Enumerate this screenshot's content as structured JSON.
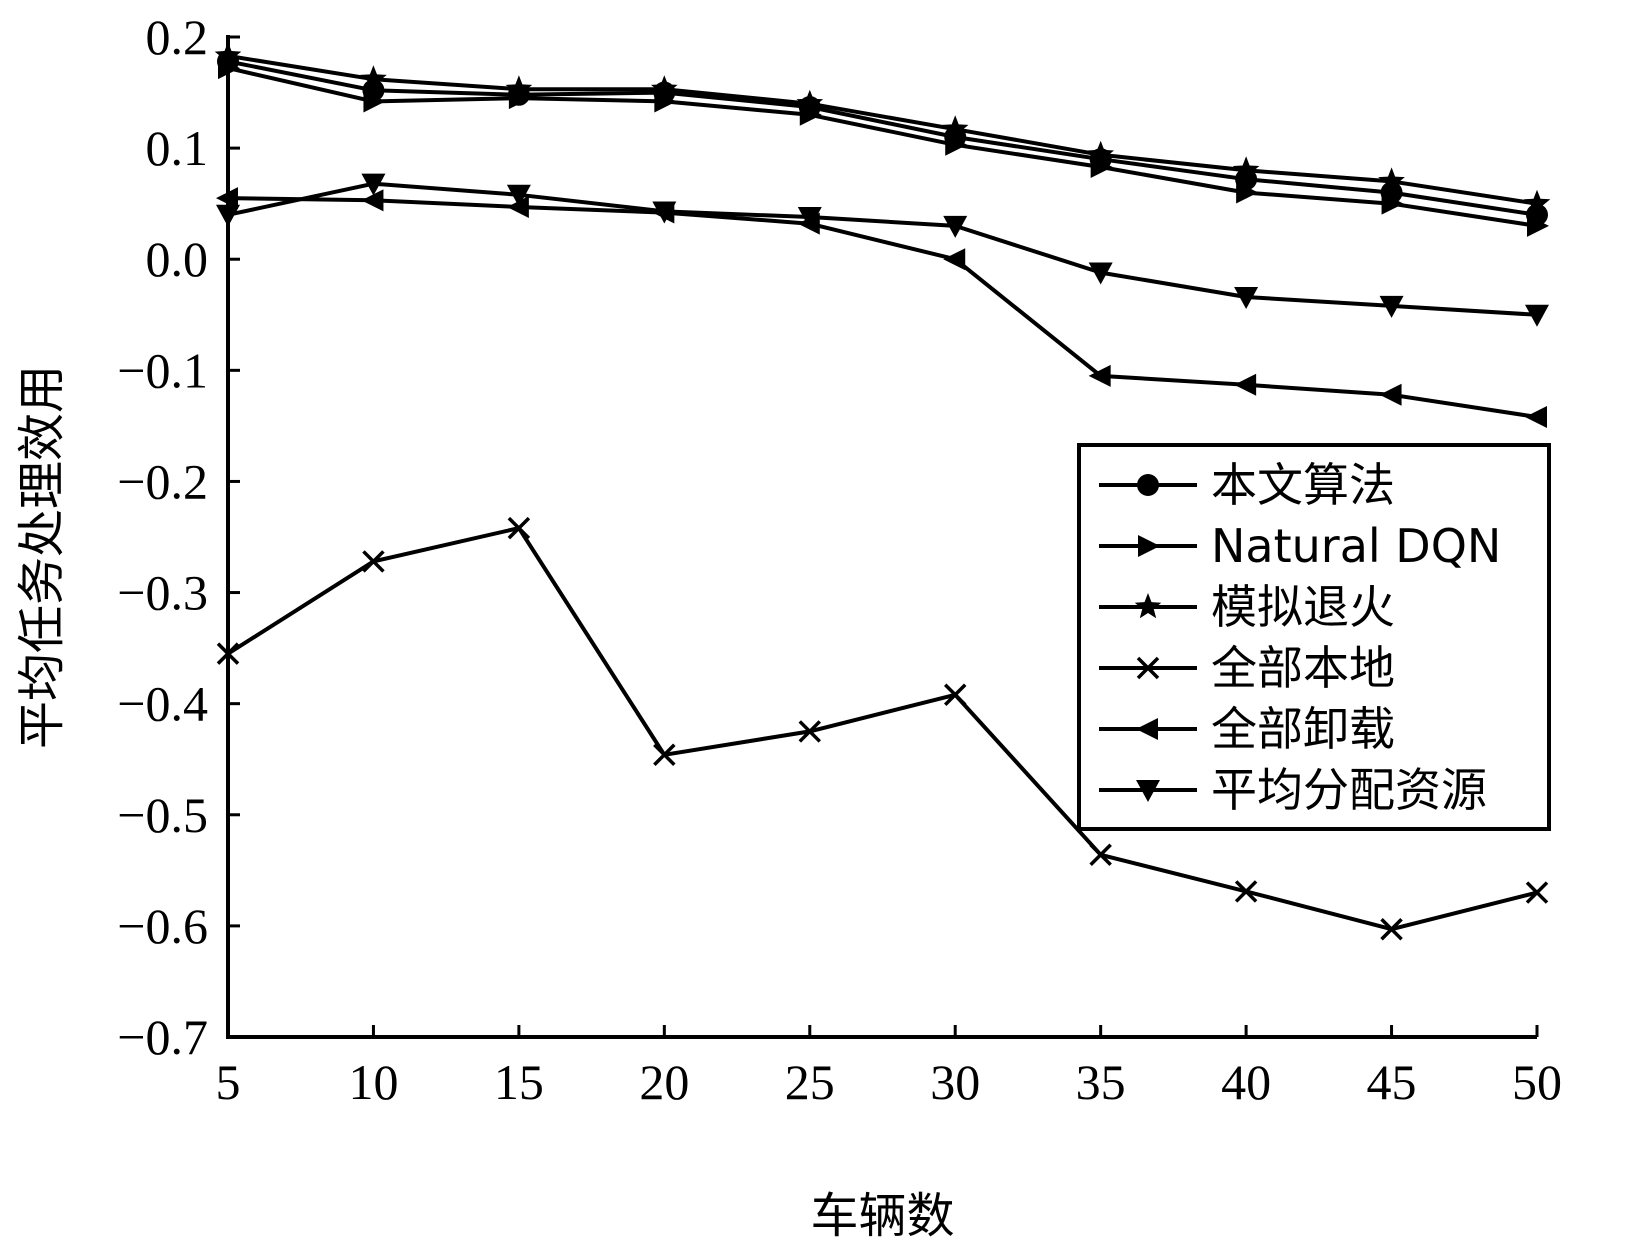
{
  "chart_data": {
    "type": "line",
    "title": "",
    "xlabel": "车辆数",
    "ylabel": "平均任务处理效用",
    "x": [
      5,
      10,
      15,
      20,
      25,
      30,
      35,
      40,
      45,
      50
    ],
    "xlim": [
      5,
      50
    ],
    "ylim": [
      -0.7,
      0.2
    ],
    "xticks": [
      "5",
      "10",
      "15",
      "20",
      "25",
      "30",
      "35",
      "40",
      "45",
      "50"
    ],
    "yticks": [
      0.2,
      0.1,
      0.0,
      -0.1,
      -0.2,
      -0.3,
      -0.4,
      -0.5,
      -0.6,
      -0.7
    ],
    "ytick_labels": [
      "0.2",
      "0.1",
      "0.0",
      "−0.1",
      "−0.2",
      "−0.3",
      "−0.4",
      "−0.5",
      "−0.6",
      "−0.7"
    ],
    "grid": false,
    "legend_position": "right",
    "series": [
      {
        "name": "本文算法",
        "marker": "circle",
        "values": [
          0.178,
          0.152,
          0.148,
          0.15,
          0.137,
          0.11,
          0.09,
          0.072,
          0.06,
          0.04
        ]
      },
      {
        "name": "Natural DQN",
        "marker": "triangle-right",
        "values": [
          0.172,
          0.142,
          0.145,
          0.142,
          0.13,
          0.103,
          0.083,
          0.06,
          0.05,
          0.03
        ]
      },
      {
        "name": "模拟退火",
        "marker": "star",
        "values": [
          0.183,
          0.162,
          0.153,
          0.153,
          0.14,
          0.117,
          0.094,
          0.08,
          0.07,
          0.05
        ]
      },
      {
        "name": "全部本地",
        "marker": "x",
        "values": [
          -0.355,
          -0.272,
          -0.242,
          -0.446,
          -0.425,
          -0.392,
          -0.536,
          -0.569,
          -0.603,
          -0.57
        ]
      },
      {
        "name": "全部卸载",
        "marker": "triangle-left",
        "values": [
          0.055,
          0.053,
          0.047,
          0.042,
          0.032,
          0.0,
          -0.105,
          -0.113,
          -0.122,
          -0.142
        ]
      },
      {
        "name": "平均分配资源",
        "marker": "triangle-down",
        "values": [
          0.04,
          0.068,
          0.058,
          0.043,
          0.038,
          0.03,
          -0.012,
          -0.034,
          -0.042,
          -0.05
        ]
      }
    ]
  }
}
